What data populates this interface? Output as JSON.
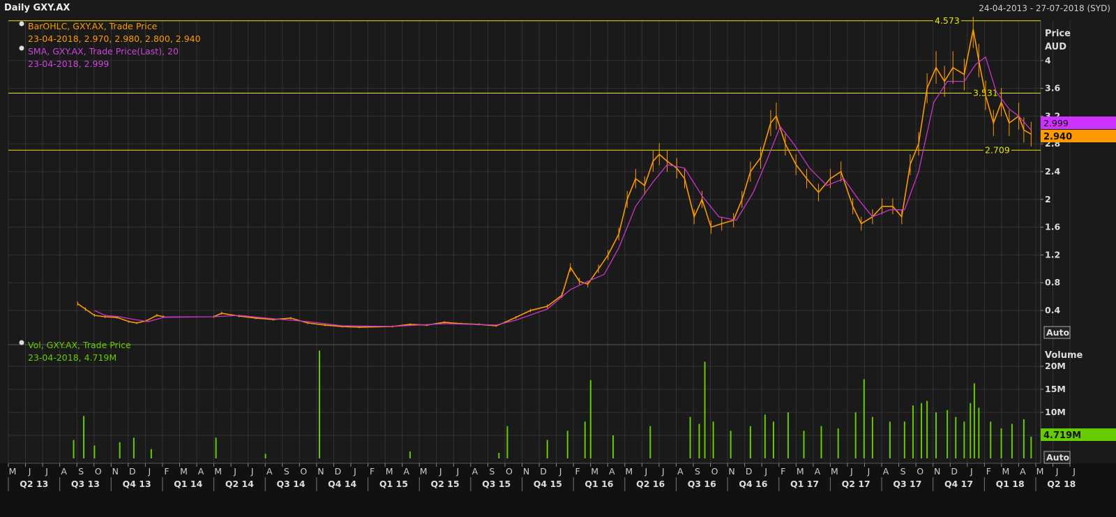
{
  "header": {
    "title": "Daily GXY.AX",
    "date_range": "24-04-2013 - 27-07-2018 (SYD)"
  },
  "price_panel": {
    "legend_ohlc_name": "BarOHLC, GXY.AX, Trade Price",
    "legend_ohlc_values": "23-04-2018, 2.970, 2.980, 2.800, 2.940",
    "legend_sma_name": "SMA, GXY.AX, Trade Price(Last),  20",
    "legend_sma_values": "23-04-2018, 2.999",
    "axis_title": "Price",
    "axis_unit": "AUD",
    "auto_label": "Auto",
    "sma_badge": "2.999",
    "last_badge": "2.940",
    "hline_labels": [
      "4.573",
      "3.531",
      "2.709"
    ]
  },
  "volume_panel": {
    "legend_name": "Vol, GXY.AX, Trade Price",
    "legend_values": "23-04-2018, 4.719M",
    "axis_title": "Volume",
    "badge": "4.719M",
    "auto_label": "Auto"
  },
  "colors": {
    "background": "#1a1a1a",
    "grid": "#333333",
    "price": "#ff9900",
    "sma": "#cc33cc",
    "volume": "#66cc00",
    "hline": "#e6e600",
    "sma_badge": "#cc33ff",
    "last_badge": "#ff9900",
    "vol_badge": "#66cc00"
  },
  "chart_data": [
    {
      "type": "line",
      "title": "Daily GXY.AX",
      "ylabel": "Price AUD",
      "ylim": [
        0,
        4.6
      ],
      "yticks": [
        0.4,
        0.8,
        1.2,
        1.6,
        2,
        2.4,
        2.8,
        3.2,
        3.6,
        4
      ],
      "hlines": [
        4.573,
        3.531,
        2.709
      ],
      "grid": true,
      "x_month_labels": [
        "M",
        "J",
        "J",
        "A",
        "S",
        "O",
        "N",
        "D",
        "J",
        "F",
        "M",
        "A",
        "M",
        "J",
        "J",
        "A",
        "S",
        "O",
        "N",
        "D",
        "J",
        "F",
        "M",
        "A",
        "M",
        "J",
        "J",
        "A",
        "S",
        "O",
        "N",
        "D",
        "J",
        "F",
        "M",
        "A",
        "M",
        "J",
        "J",
        "A",
        "S",
        "O",
        "N",
        "D",
        "J",
        "F",
        "M",
        "A",
        "M",
        "J",
        "J",
        "A",
        "S",
        "O",
        "N",
        "D",
        "J",
        "F",
        "M",
        "A",
        "M",
        "J",
        "J"
      ],
      "x_quarter_labels": [
        "Q2 13",
        "Q3 13",
        "Q4 13",
        "Q1 14",
        "Q2 14",
        "Q3 14",
        "Q4 14",
        "Q1 15",
        "Q2 15",
        "Q3 15",
        "Q4 15",
        "Q1 16",
        "Q2 16",
        "Q3 16",
        "Q4 16",
        "Q1 17",
        "Q2 17",
        "Q3 17",
        "Q4 17",
        "Q1 18",
        "Q2 18"
      ],
      "series": [
        {
          "name": "BarOHLC, GXY.AX, Trade Price",
          "points": [
            [
              "2013-09-01",
              0.5
            ],
            [
              "2013-09-15",
              0.42
            ],
            [
              "2013-10-01",
              0.33
            ],
            [
              "2013-10-20",
              0.31
            ],
            [
              "2013-11-10",
              0.3
            ],
            [
              "2013-12-01",
              0.24
            ],
            [
              "2013-12-15",
              0.22
            ],
            [
              "2014-01-01",
              0.25
            ],
            [
              "2014-01-20",
              0.33
            ],
            [
              "2014-02-01",
              0.31
            ],
            [
              "2014-05-01",
              0.31
            ],
            [
              "2014-05-15",
              0.36
            ],
            [
              "2014-06-15",
              0.32
            ],
            [
              "2014-07-15",
              0.29
            ],
            [
              "2014-08-15",
              0.27
            ],
            [
              "2014-09-15",
              0.29
            ],
            [
              "2014-10-15",
              0.22
            ],
            [
              "2014-11-15",
              0.19
            ],
            [
              "2014-12-15",
              0.17
            ],
            [
              "2015-01-15",
              0.16
            ],
            [
              "2015-03-15",
              0.17
            ],
            [
              "2015-04-15",
              0.2
            ],
            [
              "2015-05-15",
              0.19
            ],
            [
              "2015-06-15",
              0.23
            ],
            [
              "2015-07-15",
              0.21
            ],
            [
              "2015-08-15",
              0.2
            ],
            [
              "2015-09-15",
              0.18
            ],
            [
              "2015-10-01",
              0.23
            ],
            [
              "2015-10-20",
              0.3
            ],
            [
              "2015-11-15",
              0.4
            ],
            [
              "2015-12-15",
              0.46
            ],
            [
              "2016-01-10",
              0.62
            ],
            [
              "2016-01-25",
              1.02
            ],
            [
              "2016-02-10",
              0.82
            ],
            [
              "2016-02-25",
              0.78
            ],
            [
              "2016-03-15",
              1.0
            ],
            [
              "2016-04-01",
              1.2
            ],
            [
              "2016-04-20",
              1.5
            ],
            [
              "2016-05-05",
              2.0
            ],
            [
              "2016-05-20",
              2.3
            ],
            [
              "2016-06-05",
              2.2
            ],
            [
              "2016-06-20",
              2.55
            ],
            [
              "2016-07-01",
              2.65
            ],
            [
              "2016-07-15",
              2.55
            ],
            [
              "2016-08-01",
              2.45
            ],
            [
              "2016-08-15",
              2.3
            ],
            [
              "2016-09-01",
              1.75
            ],
            [
              "2016-09-15",
              2.0
            ],
            [
              "2016-10-01",
              1.6
            ],
            [
              "2016-10-20",
              1.65
            ],
            [
              "2016-11-10",
              1.7
            ],
            [
              "2016-11-25",
              2.0
            ],
            [
              "2016-12-10",
              2.4
            ],
            [
              "2016-12-28",
              2.6
            ],
            [
              "2017-01-15",
              3.1
            ],
            [
              "2017-01-25",
              3.2
            ],
            [
              "2017-02-10",
              2.8
            ],
            [
              "2017-03-01",
              2.5
            ],
            [
              "2017-03-20",
              2.3
            ],
            [
              "2017-04-10",
              2.1
            ],
            [
              "2017-05-01",
              2.3
            ],
            [
              "2017-05-20",
              2.4
            ],
            [
              "2017-06-10",
              1.9
            ],
            [
              "2017-06-25",
              1.65
            ],
            [
              "2017-07-15",
              1.75
            ],
            [
              "2017-08-01",
              1.9
            ],
            [
              "2017-08-20",
              1.9
            ],
            [
              "2017-09-05",
              1.75
            ],
            [
              "2017-09-20",
              2.5
            ],
            [
              "2017-10-05",
              2.8
            ],
            [
              "2017-10-20",
              3.6
            ],
            [
              "2017-11-05",
              3.9
            ],
            [
              "2017-11-20",
              3.7
            ],
            [
              "2017-12-05",
              3.9
            ],
            [
              "2017-12-25",
              3.8
            ],
            [
              "2018-01-10",
              4.45
            ],
            [
              "2018-01-20",
              4.0
            ],
            [
              "2018-02-01",
              3.5
            ],
            [
              "2018-02-15",
              3.1
            ],
            [
              "2018-03-01",
              3.4
            ],
            [
              "2018-03-15",
              3.1
            ],
            [
              "2018-04-01",
              3.2
            ],
            [
              "2018-04-10",
              3.0
            ],
            [
              "2018-04-23",
              2.94
            ]
          ]
        },
        {
          "name": "SMA, GXY.AX, Trade Price(Last),  20",
          "points": [
            [
              "2013-10-01",
              0.4
            ],
            [
              "2013-10-20",
              0.33
            ],
            [
              "2013-11-15",
              0.31
            ],
            [
              "2013-12-10",
              0.27
            ],
            [
              "2014-01-05",
              0.24
            ],
            [
              "2014-02-01",
              0.3
            ],
            [
              "2014-05-01",
              0.31
            ],
            [
              "2014-06-15",
              0.33
            ],
            [
              "2014-08-15",
              0.28
            ],
            [
              "2014-10-15",
              0.24
            ],
            [
              "2014-12-15",
              0.18
            ],
            [
              "2015-03-15",
              0.17
            ],
            [
              "2015-06-15",
              0.21
            ],
            [
              "2015-09-15",
              0.19
            ],
            [
              "2015-10-20",
              0.26
            ],
            [
              "2015-12-15",
              0.42
            ],
            [
              "2016-01-25",
              0.7
            ],
            [
              "2016-02-25",
              0.82
            ],
            [
              "2016-03-25",
              0.92
            ],
            [
              "2016-04-20",
              1.3
            ],
            [
              "2016-05-20",
              1.9
            ],
            [
              "2016-06-20",
              2.25
            ],
            [
              "2016-07-15",
              2.5
            ],
            [
              "2016-08-15",
              2.45
            ],
            [
              "2016-09-15",
              2.05
            ],
            [
              "2016-10-15",
              1.75
            ],
            [
              "2016-11-15",
              1.7
            ],
            [
              "2016-12-15",
              2.1
            ],
            [
              "2017-01-10",
              2.6
            ],
            [
              "2017-02-01",
              3.05
            ],
            [
              "2017-02-25",
              2.8
            ],
            [
              "2017-03-25",
              2.45
            ],
            [
              "2017-04-25",
              2.2
            ],
            [
              "2017-05-25",
              2.3
            ],
            [
              "2017-06-20",
              2.0
            ],
            [
              "2017-07-15",
              1.75
            ],
            [
              "2017-08-15",
              1.85
            ],
            [
              "2017-09-10",
              1.85
            ],
            [
              "2017-10-05",
              2.4
            ],
            [
              "2017-11-01",
              3.4
            ],
            [
              "2017-11-25",
              3.7
            ],
            [
              "2017-12-25",
              3.7
            ],
            [
              "2018-01-15",
              3.95
            ],
            [
              "2018-02-01",
              4.05
            ],
            [
              "2018-02-20",
              3.55
            ],
            [
              "2018-03-15",
              3.3
            ],
            [
              "2018-04-01",
              3.2
            ],
            [
              "2018-04-23",
              2.999
            ]
          ]
        }
      ]
    },
    {
      "type": "bar",
      "ylabel": "Volume",
      "ylim": [
        0,
        24000000
      ],
      "yticks": [
        5000000,
        10000000,
        15000000,
        20000000
      ],
      "ytick_labels": [
        "5M",
        "10M",
        "15M",
        "20M"
      ],
      "series": [
        {
          "name": "Vol, GXY.AX, Trade Price",
          "bars": [
            [
              "2013-08-25",
              4.0
            ],
            [
              "2013-09-12",
              9.2
            ],
            [
              "2013-10-01",
              2.8
            ],
            [
              "2013-11-15",
              3.5
            ],
            [
              "2013-12-10",
              4.5
            ],
            [
              "2014-01-10",
              2.0
            ],
            [
              "2014-05-05",
              4.5
            ],
            [
              "2014-08-01",
              1.0
            ],
            [
              "2014-11-05",
              23.4
            ],
            [
              "2015-04-15",
              1.5
            ],
            [
              "2015-09-20",
              1.2
            ],
            [
              "2015-10-05",
              7.0
            ],
            [
              "2015-12-15",
              4.0
            ],
            [
              "2016-01-20",
              6.0
            ],
            [
              "2016-02-20",
              8.0
            ],
            [
              "2016-03-01",
              17.0
            ],
            [
              "2016-04-10",
              5.0
            ],
            [
              "2016-06-15",
              7.0
            ],
            [
              "2016-08-25",
              9.0
            ],
            [
              "2016-09-10",
              7.5
            ],
            [
              "2016-09-20",
              21.0
            ],
            [
              "2016-10-05",
              8.0
            ],
            [
              "2016-11-05",
              6.0
            ],
            [
              "2016-12-10",
              7.0
            ],
            [
              "2017-01-05",
              9.5
            ],
            [
              "2017-01-20",
              8.0
            ],
            [
              "2017-02-15",
              10.0
            ],
            [
              "2017-03-15",
              6.0
            ],
            [
              "2017-04-15",
              7.0
            ],
            [
              "2017-05-15",
              6.5
            ],
            [
              "2017-06-15",
              10.0
            ],
            [
              "2017-06-30",
              17.2
            ],
            [
              "2017-07-15",
              9.0
            ],
            [
              "2017-08-15",
              8.0
            ],
            [
              "2017-09-10",
              8.0
            ],
            [
              "2017-09-25",
              11.5
            ],
            [
              "2017-10-10",
              12.0
            ],
            [
              "2017-10-20",
              12.5
            ],
            [
              "2017-11-05",
              10.0
            ],
            [
              "2017-11-25",
              10.5
            ],
            [
              "2017-12-10",
              9.0
            ],
            [
              "2017-12-25",
              8.0
            ],
            [
              "2018-01-05",
              12.0
            ],
            [
              "2018-01-12",
              16.3
            ],
            [
              "2018-01-20",
              11.0
            ],
            [
              "2018-02-10",
              8.0
            ],
            [
              "2018-03-01",
              6.5
            ],
            [
              "2018-03-20",
              7.5
            ],
            [
              "2018-04-10",
              8.5
            ],
            [
              "2018-04-23",
              4.719
            ]
          ],
          "unit": "M"
        }
      ]
    }
  ]
}
